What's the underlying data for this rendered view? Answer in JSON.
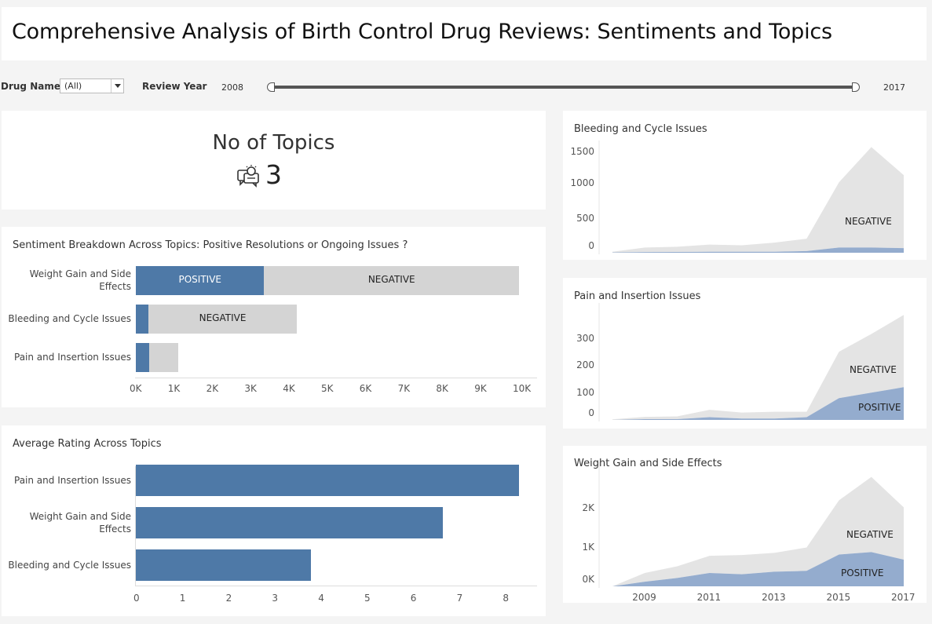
{
  "title": "Comprehensive Analysis of Birth Control Drug Reviews: Sentiments and Topics",
  "filters": {
    "drug_name_label": "Drug Name",
    "drug_name_value": "(All)",
    "review_year_label": "Review Year",
    "year_min": "2008",
    "year_max": "2017"
  },
  "kpi": {
    "title": "No of Topics",
    "value": "3",
    "icon": "topics-discussion-icon"
  },
  "colors": {
    "positive": "#4e79a7",
    "negative": "#d4d4d4",
    "area_negative": "#e4e4e4",
    "area_positive": "#94acce"
  },
  "sentiment_chart": {
    "title": "Sentiment Breakdown Across Topics: Positive Resolutions or Ongoing Issues ?",
    "categories": [
      "Weight Gain and Side Effects",
      "Bleeding and Cycle Issues",
      "Pain and Insertion Issues"
    ],
    "category_lines": [
      [
        "Weight Gain and Side",
        "Effects"
      ],
      [
        "Bleeding and Cycle Issues"
      ],
      [
        "Pain and Insertion Issues"
      ]
    ],
    "positive": [
      3350,
      330,
      340
    ],
    "negative": [
      6650,
      3870,
      760
    ],
    "positive_labels": [
      "POSITIVE",
      "",
      ""
    ],
    "negative_labels": [
      "NEGATIVE",
      "NEGATIVE",
      ""
    ],
    "ticks": [
      "0K",
      "1K",
      "2K",
      "3K",
      "4K",
      "5K",
      "6K",
      "7K",
      "8K",
      "9K",
      "10K"
    ]
  },
  "rating_chart": {
    "title": "Average Rating Across Topics",
    "categories": [
      "Pain and Insertion Issues",
      "Weight Gain and Side Effects",
      "Bleeding and Cycle Issues"
    ],
    "category_lines": [
      [
        "Pain and Insertion Issues"
      ],
      [
        "Weight Gain and Side",
        "Effects"
      ],
      [
        "Bleeding and Cycle Issues"
      ]
    ],
    "values": [
      8.3,
      6.65,
      3.8
    ],
    "ticks": [
      "0",
      "1",
      "2",
      "3",
      "4",
      "5",
      "6",
      "7",
      "8"
    ]
  },
  "chart_data": [
    {
      "type": "area",
      "title": "Bleeding and Cycle Issues",
      "x": [
        2008,
        2009,
        2010,
        2011,
        2012,
        2013,
        2014,
        2015,
        2016,
        2017
      ],
      "series": [
        {
          "name": "POSITIVE",
          "values": [
            5,
            10,
            12,
            15,
            15,
            15,
            25,
            80,
            80,
            70
          ]
        },
        {
          "name": "NEGATIVE",
          "values": [
            10,
            70,
            80,
            110,
            100,
            140,
            190,
            1000,
            1540,
            1120
          ]
        }
      ],
      "ticks": [
        "1500",
        "1000",
        "500",
        "0"
      ],
      "ylim": [
        0,
        1600
      ],
      "labels": [
        "NEGATIVE"
      ]
    },
    {
      "type": "area",
      "title": "Pain and Insertion Issues",
      "x": [
        2008,
        2009,
        2010,
        2011,
        2012,
        2013,
        2014,
        2015,
        2016,
        2017
      ],
      "series": [
        {
          "name": "POSITIVE",
          "values": [
            0,
            3,
            3,
            10,
            5,
            5,
            10,
            80,
            100,
            120
          ]
        },
        {
          "name": "NEGATIVE",
          "values": [
            2,
            8,
            10,
            27,
            22,
            25,
            20,
            170,
            215,
            265
          ]
        }
      ],
      "ticks": [
        "300",
        "200",
        "100",
        "0"
      ],
      "ylim": [
        0,
        400
      ],
      "labels": [
        "NEGATIVE",
        "POSITIVE"
      ]
    },
    {
      "type": "area",
      "title": "Weight Gain and Side Effects",
      "x": [
        2008,
        2009,
        2010,
        2011,
        2012,
        2013,
        2014,
        2015,
        2016,
        2017
      ],
      "series": [
        {
          "name": "POSITIVE",
          "values": [
            0,
            110,
            200,
            320,
            290,
            350,
            370,
            760,
            820,
            640
          ]
        },
        {
          "name": "NEGATIVE",
          "values": [
            0,
            210,
            280,
            410,
            460,
            450,
            560,
            1300,
            1800,
            1250
          ]
        }
      ],
      "ticks": [
        "2K",
        "1K",
        "0K"
      ],
      "xticks": [
        "2009",
        "2011",
        "2013",
        "2015",
        "2017"
      ],
      "ylim": [
        0,
        2800
      ],
      "labels": [
        "NEGATIVE",
        "POSITIVE"
      ]
    }
  ]
}
